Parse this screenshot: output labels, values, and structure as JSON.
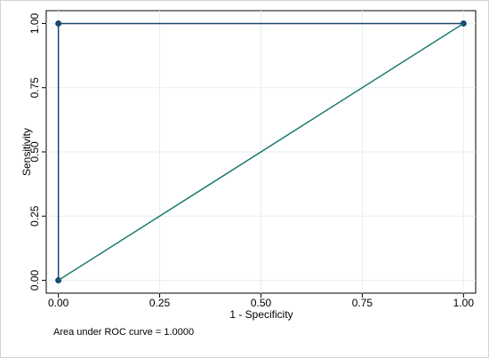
{
  "chart_data": {
    "type": "line",
    "xlabel": "1 - Specificity",
    "ylabel": "Sensitivity",
    "note": "Area under ROC curve = 1.0000",
    "xlim": [
      -0.03,
      1.03
    ],
    "ylim": [
      -0.05,
      1.05
    ],
    "xticks": [
      {
        "value": 0,
        "label": "0.00"
      },
      {
        "value": 0.25,
        "label": "0.25"
      },
      {
        "value": 0.5,
        "label": "0.50"
      },
      {
        "value": 0.75,
        "label": "0.75"
      },
      {
        "value": 1,
        "label": "1.00"
      }
    ],
    "yticks": [
      {
        "value": 0,
        "label": "0.00"
      },
      {
        "value": 0.25,
        "label": "0.25"
      },
      {
        "value": 0.5,
        "label": "0.50"
      },
      {
        "value": 0.75,
        "label": "0.75"
      },
      {
        "value": 1,
        "label": "1.00"
      }
    ],
    "grid": true,
    "series": [
      {
        "color": "#1a476f",
        "markers": true,
        "x": [
          0,
          0,
          1
        ],
        "values": [
          0,
          1,
          1
        ]
      },
      {
        "color": "#1e7b70",
        "markers": false,
        "x": [
          0,
          1
        ],
        "values": [
          0,
          1
        ]
      }
    ]
  }
}
